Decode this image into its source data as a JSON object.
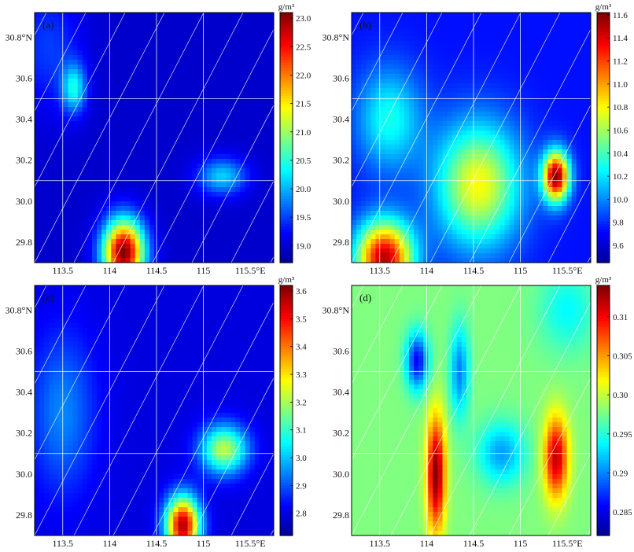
{
  "figure": {
    "colors": {
      "jet": [
        "#00008f",
        "#0000ff",
        "#0080ff",
        "#00ffff",
        "#80ff80",
        "#ffff00",
        "#ff8000",
        "#ff0000",
        "#800000"
      ],
      "grid": "#ffffff"
    }
  },
  "chart_data": [
    {
      "type": "heatmap",
      "panel_label": "(a)",
      "unit": "g/m³",
      "x_ticks": [
        "113.5",
        "114",
        "114.5",
        "115",
        "115.5°E"
      ],
      "y_ticks": [
        "30.8°N",
        "30.6",
        "30.4",
        "30.2",
        "30.0",
        "29.8"
      ],
      "colorbar_ticks": [
        "23.0",
        "22.5",
        "22.0",
        "21.5",
        "21.0",
        "20.5",
        "20.0",
        "19.5",
        "19.0"
      ],
      "clim": [
        18.7,
        23.1
      ],
      "xlim": [
        113.2,
        115.75
      ],
      "ylim": [
        29.7,
        30.92
      ],
      "x_gridlines": [
        113.5,
        114.0,
        114.5,
        115.0
      ],
      "y_gridlines": [
        30.1,
        30.5
      ],
      "diagonal_lines": "white overlay lines",
      "base": 19.0,
      "blobs": [
        {
          "lon": 114.15,
          "lat": 29.75,
          "amp": 4.1,
          "sx": 0.22,
          "sy": 0.16
        },
        {
          "lon": 113.62,
          "lat": 30.55,
          "amp": 1.3,
          "sx": 0.13,
          "sy": 0.12
        },
        {
          "lon": 115.2,
          "lat": 30.12,
          "amp": 1.15,
          "sx": 0.26,
          "sy": 0.09
        },
        {
          "lon": 113.35,
          "lat": 30.75,
          "amp": 0.5,
          "sx": 0.35,
          "sy": 0.3
        }
      ]
    },
    {
      "type": "heatmap",
      "panel_label": "(b)",
      "unit": "g/m³",
      "x_ticks": [
        "113.5",
        "114",
        "114.5",
        "115",
        "115.5°E"
      ],
      "y_ticks": [
        "30.8°N",
        "30.6",
        "30.4",
        "30.2",
        "30.0",
        "29.8"
      ],
      "colorbar_ticks": [
        "11.6",
        "11.4",
        "11.2",
        "11.0",
        "10.8",
        "10.6",
        "10.4",
        "10.2",
        "10.0",
        "9.8",
        "9.6"
      ],
      "clim": [
        9.45,
        11.62
      ],
      "xlim": [
        113.2,
        115.75
      ],
      "ylim": [
        29.7,
        30.92
      ],
      "x_gridlines": [
        113.5,
        114.0,
        114.5,
        115.0
      ],
      "y_gridlines": [
        30.1,
        30.5
      ],
      "diagonal_lines": "white overlay lines",
      "base": 9.75,
      "blobs": [
        {
          "lon": 115.38,
          "lat": 30.12,
          "amp": 1.85,
          "sx": 0.14,
          "sy": 0.12
        },
        {
          "lon": 113.55,
          "lat": 29.72,
          "amp": 1.75,
          "sx": 0.3,
          "sy": 0.18
        },
        {
          "lon": 114.55,
          "lat": 30.08,
          "amp": 1.05,
          "sx": 0.45,
          "sy": 0.3
        },
        {
          "lon": 113.6,
          "lat": 30.4,
          "amp": 0.55,
          "sx": 0.35,
          "sy": 0.25
        }
      ]
    },
    {
      "type": "heatmap",
      "panel_label": "(c)",
      "unit": "g/m³",
      "x_ticks": [
        "113.5",
        "114",
        "114.5",
        "115",
        "115.5°E"
      ],
      "y_ticks": [
        "30.8°N",
        "30.6",
        "30.4",
        "30.2",
        "30.0",
        "29.8"
      ],
      "colorbar_ticks": [
        "3.6",
        "3.5",
        "3.4",
        "3.3",
        "3.2",
        "3.1",
        "3.0",
        "2.9",
        "2.8"
      ],
      "clim": [
        2.72,
        3.62
      ],
      "xlim": [
        113.2,
        115.75
      ],
      "ylim": [
        29.7,
        30.92
      ],
      "x_gridlines": [
        113.5,
        114.0,
        114.5,
        115.0
      ],
      "y_gridlines": [
        30.1,
        30.5
      ],
      "diagonal_lines": "white overlay lines",
      "base": 2.8,
      "blobs": [
        {
          "lon": 114.78,
          "lat": 29.75,
          "amp": 0.78,
          "sx": 0.18,
          "sy": 0.14
        },
        {
          "lon": 115.22,
          "lat": 30.12,
          "amp": 0.42,
          "sx": 0.25,
          "sy": 0.12
        },
        {
          "lon": 113.5,
          "lat": 30.3,
          "amp": 0.15,
          "sx": 0.35,
          "sy": 0.4
        }
      ]
    },
    {
      "type": "heatmap",
      "panel_label": "(d)",
      "unit": "g/m³",
      "x_ticks": [
        "113.5",
        "114",
        "114.5",
        "115",
        "115.5°E"
      ],
      "y_ticks": [
        "30.8°N",
        "30.6",
        "30.4",
        "30.2",
        "30.0",
        "29.8"
      ],
      "colorbar_ticks": [
        "0.31",
        "0.305",
        "0.30",
        "0.295",
        "0.29",
        "0.285"
      ],
      "clim": [
        0.282,
        0.314
      ],
      "xlim": [
        113.2,
        115.75
      ],
      "ylim": [
        29.7,
        30.92
      ],
      "x_gridlines": [
        113.5,
        114.0,
        114.5,
        115.0
      ],
      "y_gridlines": [
        30.1,
        30.5
      ],
      "diagonal_lines": "white overlay lines",
      "base": 0.298,
      "blobs": [
        {
          "lon": 114.1,
          "lat": 30.0,
          "amp": 0.016,
          "sx": 0.1,
          "sy": 0.28
        },
        {
          "lon": 115.38,
          "lat": 30.08,
          "amp": 0.014,
          "sx": 0.13,
          "sy": 0.2
        },
        {
          "lon": 113.9,
          "lat": 30.55,
          "amp": -0.012,
          "sx": 0.12,
          "sy": 0.14
        },
        {
          "lon": 114.35,
          "lat": 30.5,
          "amp": -0.008,
          "sx": 0.1,
          "sy": 0.22
        },
        {
          "lon": 114.8,
          "lat": 30.1,
          "amp": -0.007,
          "sx": 0.25,
          "sy": 0.15
        },
        {
          "lon": 115.5,
          "lat": 30.8,
          "amp": -0.004,
          "sx": 0.3,
          "sy": 0.2
        }
      ]
    }
  ]
}
